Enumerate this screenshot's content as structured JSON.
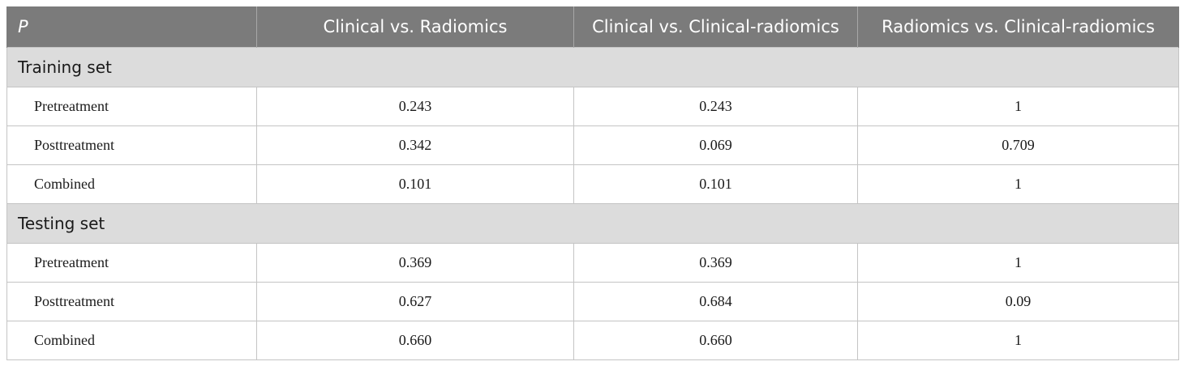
{
  "table": {
    "headers": [
      "P",
      "Clinical vs. Radiomics",
      "Clinical vs. Clinical-radiomics",
      "Radiomics vs. Clinical-radiomics"
    ],
    "sections": [
      {
        "title": "Training set",
        "rows": [
          {
            "label": "Pretreatment",
            "values": [
              "0.243",
              "0.243",
              "1"
            ]
          },
          {
            "label": "Posttreatment",
            "values": [
              "0.342",
              "0.069",
              "0.709"
            ]
          },
          {
            "label": "Combined",
            "values": [
              "0.101",
              "0.101",
              "1"
            ]
          }
        ]
      },
      {
        "title": "Testing set",
        "rows": [
          {
            "label": "Pretreatment",
            "values": [
              "0.369",
              "0.369",
              "1"
            ]
          },
          {
            "label": "Posttreatment",
            "values": [
              "0.627",
              "0.684",
              "0.09"
            ]
          },
          {
            "label": "Combined",
            "values": [
              "0.660",
              "0.660",
              "1"
            ]
          }
        ]
      }
    ]
  }
}
